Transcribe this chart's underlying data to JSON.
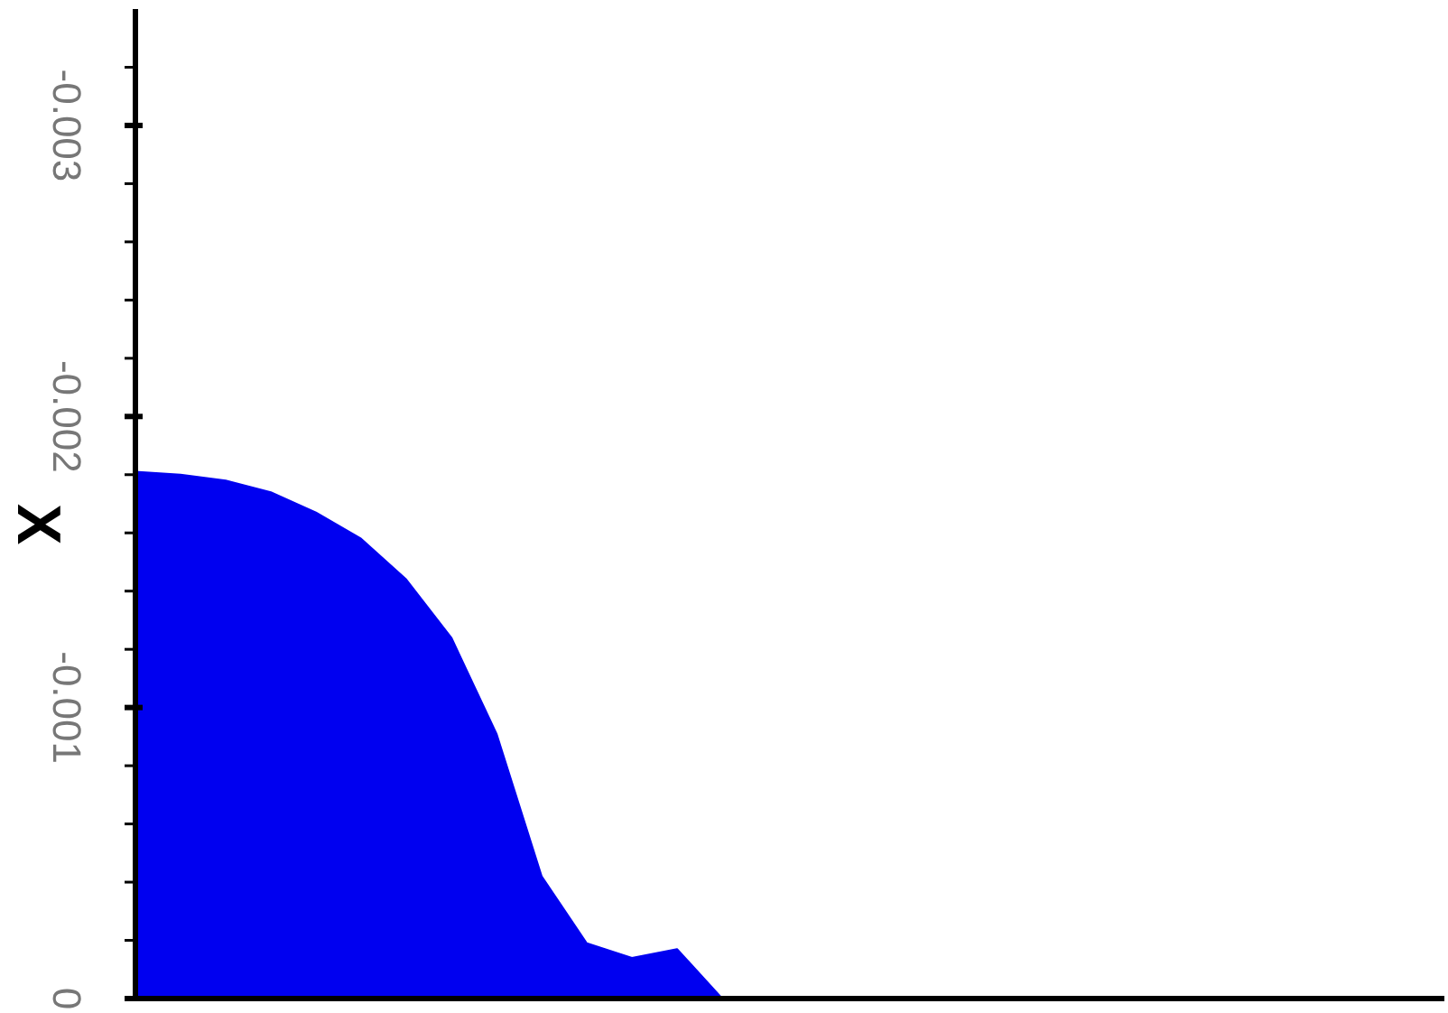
{
  "chart_data": {
    "type": "area",
    "ylabel": "X",
    "categories": [
      null,
      null,
      null,
      null,
      null,
      null,
      null,
      null,
      null,
      null,
      null,
      null,
      null,
      null,
      null,
      null,
      null,
      null,
      null,
      null,
      null,
      null,
      null,
      null,
      null,
      null,
      null,
      null,
      null,
      null
    ],
    "series": [
      {
        "color": "#0000f0",
        "values": [
          -0.00181,
          -0.0018,
          -0.00178,
          -0.00174,
          -0.00167,
          -0.00158,
          -0.00144,
          -0.00124,
          -0.00091,
          -0.00042,
          -0.00019,
          -0.00014,
          -0.00017,
          0,
          0,
          0,
          0,
          0,
          0,
          0,
          0,
          0,
          0,
          0,
          0,
          0,
          0,
          0,
          0,
          0
        ]
      }
    ],
    "ylim": [
      0,
      -0.0034
    ],
    "yticks": [
      0,
      {
        "value": -0.0002,
        "label": null
      },
      {
        "value": -0.0004,
        "label": null
      },
      {
        "value": -0.0006,
        "label": null
      },
      {
        "value": -0.0008,
        "label": null
      },
      -0.001,
      {
        "value": -0.0012,
        "label": null
      },
      {
        "value": -0.0014,
        "label": null
      },
      {
        "value": -0.0016,
        "label": null
      },
      {
        "value": -0.0018,
        "label": null
      },
      -0.002,
      {
        "value": -0.0022,
        "label": null
      },
      {
        "value": -0.0024,
        "label": null
      },
      {
        "value": -0.0026,
        "label": null
      },
      {
        "value": -0.0028,
        "label": null
      },
      -0.003,
      {
        "value": -0.0032,
        "label": null
      }
    ],
    "tick_labels": "y"
  }
}
